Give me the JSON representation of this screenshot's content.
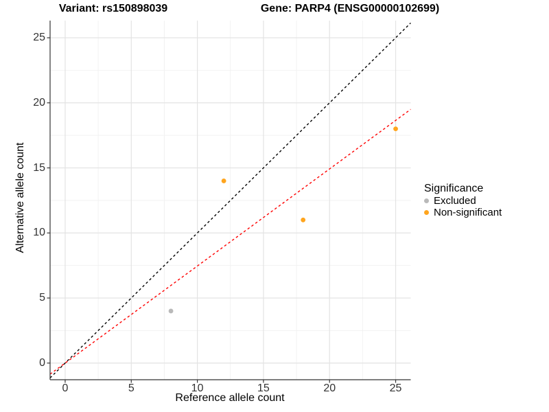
{
  "chart_data": {
    "type": "scatter",
    "title_left": "Variant: rs150898039",
    "title_right": "Gene: PARP4 (ENSG00000102699)",
    "xlabel": "Reference allele count",
    "ylabel": "Alternative allele count",
    "xlim": [
      -1.14,
      26.14
    ],
    "ylim": [
      -1.28,
      26.32
    ],
    "x_ticks": [
      0,
      5,
      10,
      15,
      20,
      25
    ],
    "y_ticks": [
      0,
      5,
      10,
      15,
      20,
      25
    ],
    "x_minor_ticks": [
      2.5,
      7.5,
      12.5,
      17.5,
      22.5
    ],
    "y_minor_ticks": [
      2.5,
      7.5,
      12.5,
      17.5,
      22.5
    ],
    "grid": true,
    "background": "#ffffff",
    "major_grid_color": "#e3e3e3",
    "minor_grid_color": "#f2f2f2",
    "axis_color": "#333333",
    "series": [
      {
        "name": "Excluded",
        "color": "#b9b9b9",
        "points": [
          {
            "x": 8,
            "y": 4
          }
        ]
      },
      {
        "name": "Non-significant",
        "color": "#ffa51e",
        "points": [
          {
            "x": 12,
            "y": 14
          },
          {
            "x": 18,
            "y": 11
          },
          {
            "x": 25,
            "y": 18
          }
        ]
      }
    ],
    "reference_lines": [
      {
        "name": "expected-balance-line",
        "slope": 1.0,
        "intercept": 0,
        "color": "#000000",
        "style": "dashed"
      },
      {
        "name": "observed-ratio-line",
        "slope": 0.746,
        "intercept": 0,
        "color": "#ff0000",
        "style": "dashed"
      }
    ],
    "legend": {
      "title": "Significance",
      "position": "right",
      "entries": [
        {
          "label": "Excluded",
          "color": "#b9b9b9"
        },
        {
          "label": "Non-significant",
          "color": "#ffa51e"
        }
      ]
    }
  }
}
